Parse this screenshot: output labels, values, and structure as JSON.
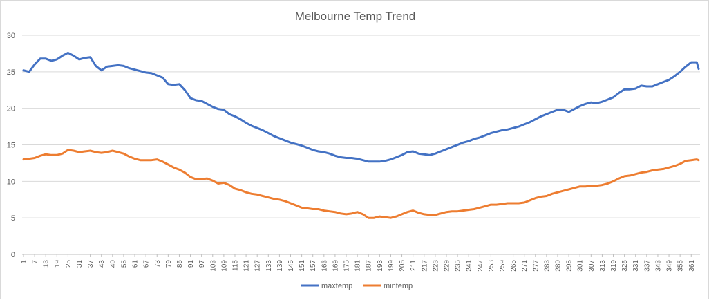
{
  "chart_data": {
    "type": "line",
    "title": "Melbourne Temp Trend",
    "xlabel": "",
    "ylabel": "",
    "ylim": [
      0,
      30
    ],
    "yticks": [
      0,
      5,
      10,
      15,
      20,
      25,
      30
    ],
    "xlim": [
      1,
      365
    ],
    "xticks": [
      1,
      7,
      13,
      19,
      25,
      31,
      37,
      43,
      49,
      55,
      61,
      67,
      73,
      79,
      85,
      91,
      97,
      103,
      109,
      115,
      121,
      127,
      133,
      139,
      145,
      151,
      157,
      163,
      169,
      175,
      181,
      187,
      193,
      199,
      205,
      211,
      217,
      223,
      229,
      235,
      241,
      247,
      253,
      259,
      265,
      271,
      277,
      283,
      289,
      295,
      301,
      307,
      313,
      319,
      325,
      331,
      337,
      343,
      349,
      355,
      361
    ],
    "grid": true,
    "legend_position": "bottom",
    "series": [
      {
        "name": "maxtemp",
        "color": "#4472c4",
        "x": [
          1,
          4,
          7,
          10,
          13,
          16,
          19,
          22,
          25,
          28,
          31,
          34,
          37,
          40,
          43,
          46,
          49,
          52,
          55,
          58,
          61,
          64,
          67,
          70,
          73,
          76,
          79,
          82,
          85,
          88,
          91,
          94,
          97,
          100,
          103,
          106,
          109,
          112,
          115,
          118,
          121,
          124,
          127,
          130,
          133,
          136,
          139,
          142,
          145,
          148,
          151,
          154,
          157,
          160,
          163,
          166,
          169,
          172,
          175,
          178,
          181,
          184,
          187,
          190,
          193,
          196,
          199,
          202,
          205,
          208,
          211,
          214,
          217,
          220,
          223,
          226,
          229,
          232,
          235,
          238,
          241,
          244,
          247,
          250,
          253,
          256,
          259,
          262,
          265,
          268,
          271,
          274,
          277,
          280,
          283,
          286,
          289,
          292,
          295,
          298,
          301,
          304,
          307,
          310,
          313,
          316,
          319,
          322,
          325,
          328,
          331,
          334,
          337,
          340,
          343,
          346,
          349,
          352,
          355,
          358,
          361,
          364,
          365
        ],
        "values": [
          25.2,
          25.0,
          26.0,
          26.8,
          26.8,
          26.5,
          26.7,
          27.2,
          27.6,
          27.2,
          26.7,
          26.9,
          27.0,
          25.8,
          25.2,
          25.7,
          25.8,
          25.9,
          25.8,
          25.5,
          25.3,
          25.1,
          24.9,
          24.8,
          24.5,
          24.2,
          23.3,
          23.2,
          23.3,
          22.5,
          21.4,
          21.1,
          21.0,
          20.6,
          20.2,
          19.9,
          19.8,
          19.2,
          18.9,
          18.5,
          18.0,
          17.6,
          17.3,
          17.0,
          16.6,
          16.2,
          15.9,
          15.6,
          15.3,
          15.1,
          14.9,
          14.6,
          14.3,
          14.1,
          14.0,
          13.8,
          13.5,
          13.3,
          13.2,
          13.2,
          13.1,
          12.9,
          12.7,
          12.7,
          12.7,
          12.8,
          13.0,
          13.3,
          13.6,
          14.0,
          14.1,
          13.8,
          13.7,
          13.6,
          13.8,
          14.1,
          14.4,
          14.7,
          15.0,
          15.3,
          15.5,
          15.8,
          16.0,
          16.3,
          16.6,
          16.8,
          17.0,
          17.1,
          17.3,
          17.5,
          17.8,
          18.1,
          18.5,
          18.9,
          19.2,
          19.5,
          19.8,
          19.8,
          19.5,
          19.9,
          20.3,
          20.6,
          20.8,
          20.7,
          20.9,
          21.2,
          21.5,
          22.1,
          22.6,
          22.6,
          22.7,
          23.1,
          23.0,
          23.0,
          23.3,
          23.6,
          23.9,
          24.4,
          25.0,
          25.7,
          26.3,
          26.3,
          25.4
        ]
      },
      {
        "name": "mintemp",
        "color": "#ed7d31",
        "x": [
          1,
          4,
          7,
          10,
          13,
          16,
          19,
          22,
          25,
          28,
          31,
          34,
          37,
          40,
          43,
          46,
          49,
          52,
          55,
          58,
          61,
          64,
          67,
          70,
          73,
          76,
          79,
          82,
          85,
          88,
          91,
          94,
          97,
          100,
          103,
          106,
          109,
          112,
          115,
          118,
          121,
          124,
          127,
          130,
          133,
          136,
          139,
          142,
          145,
          148,
          151,
          154,
          157,
          160,
          163,
          166,
          169,
          172,
          175,
          178,
          181,
          184,
          187,
          190,
          193,
          196,
          199,
          202,
          205,
          208,
          211,
          214,
          217,
          220,
          223,
          226,
          229,
          232,
          235,
          238,
          241,
          244,
          247,
          250,
          253,
          256,
          259,
          262,
          265,
          268,
          271,
          274,
          277,
          280,
          283,
          286,
          289,
          292,
          295,
          298,
          301,
          304,
          307,
          310,
          313,
          316,
          319,
          322,
          325,
          328,
          331,
          334,
          337,
          340,
          343,
          346,
          349,
          352,
          355,
          358,
          361,
          364,
          365
        ],
        "values": [
          13.0,
          13.1,
          13.2,
          13.5,
          13.7,
          13.6,
          13.6,
          13.8,
          14.3,
          14.2,
          14.0,
          14.1,
          14.2,
          14.0,
          13.9,
          14.0,
          14.2,
          14.0,
          13.8,
          13.4,
          13.1,
          12.9,
          12.9,
          12.9,
          13.0,
          12.7,
          12.3,
          11.9,
          11.6,
          11.2,
          10.6,
          10.3,
          10.3,
          10.4,
          10.1,
          9.7,
          9.8,
          9.5,
          9.0,
          8.8,
          8.5,
          8.3,
          8.2,
          8.0,
          7.8,
          7.6,
          7.5,
          7.3,
          7.0,
          6.7,
          6.4,
          6.3,
          6.2,
          6.2,
          6.0,
          5.9,
          5.8,
          5.6,
          5.5,
          5.6,
          5.8,
          5.5,
          5.0,
          5.0,
          5.2,
          5.1,
          5.0,
          5.2,
          5.5,
          5.8,
          6.0,
          5.7,
          5.5,
          5.4,
          5.4,
          5.6,
          5.8,
          5.9,
          5.9,
          6.0,
          6.1,
          6.2,
          6.4,
          6.6,
          6.8,
          6.8,
          6.9,
          7.0,
          7.0,
          7.0,
          7.1,
          7.4,
          7.7,
          7.9,
          8.0,
          8.3,
          8.5,
          8.7,
          8.9,
          9.1,
          9.3,
          9.3,
          9.4,
          9.4,
          9.5,
          9.7,
          10.0,
          10.4,
          10.7,
          10.8,
          11.0,
          11.2,
          11.3,
          11.5,
          11.6,
          11.7,
          11.9,
          12.1,
          12.4,
          12.8,
          12.9,
          13.0,
          12.9
        ]
      }
    ]
  }
}
